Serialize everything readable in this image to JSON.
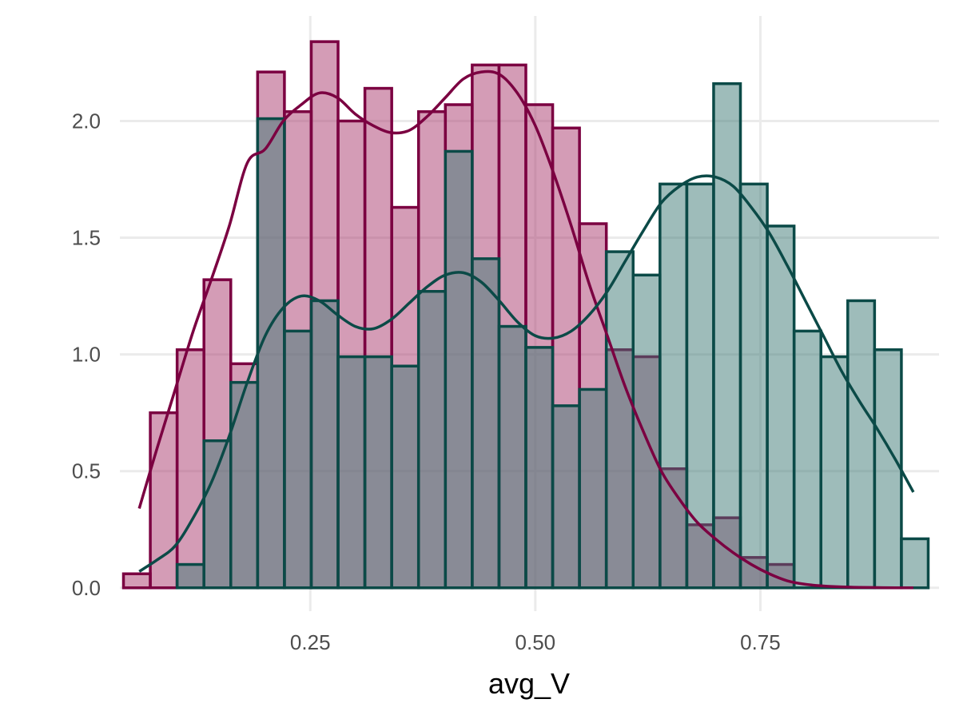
{
  "chart_data": {
    "type": "bar",
    "subtype": "overlaid-histogram-with-density",
    "title": "",
    "xlabel": "avg_V",
    "ylabel": "",
    "xlim": [
      0.0385,
      0.9485
    ],
    "ylim": [
      -0.1,
      2.45
    ],
    "x_ticks": [
      0.25,
      0.5,
      0.75
    ],
    "x_tick_labels": [
      "0.25",
      "0.50",
      "0.75"
    ],
    "y_ticks": [
      0.0,
      0.5,
      1.0,
      1.5,
      2.0
    ],
    "y_tick_labels": [
      "0.0",
      "0.5",
      "1.0",
      "1.5",
      "2.0"
    ],
    "grid": true,
    "legend": "none",
    "series": [
      {
        "color_fill": "#aa3a6e",
        "color_line": "#7b0041",
        "fill_opacity": 0.5,
        "bin_width": 0.0298,
        "bins": [
          {
            "x0": 0.0425,
            "density": 0.06
          },
          {
            "x0": 0.0723,
            "density": 0.75
          },
          {
            "x0": 0.1021,
            "density": 1.02
          },
          {
            "x0": 0.1319,
            "density": 1.32
          },
          {
            "x0": 0.1617,
            "density": 0.96
          },
          {
            "x0": 0.1915,
            "density": 2.21
          },
          {
            "x0": 0.2213,
            "density": 2.04
          },
          {
            "x0": 0.2511,
            "density": 2.34
          },
          {
            "x0": 0.2809,
            "density": 2.0
          },
          {
            "x0": 0.3107,
            "density": 2.14
          },
          {
            "x0": 0.3405,
            "density": 1.63
          },
          {
            "x0": 0.3703,
            "density": 2.04
          },
          {
            "x0": 0.4001,
            "density": 2.07
          },
          {
            "x0": 0.4299,
            "density": 2.24
          },
          {
            "x0": 0.4597,
            "density": 2.24
          },
          {
            "x0": 0.4895,
            "density": 2.07
          },
          {
            "x0": 0.5193,
            "density": 1.97
          },
          {
            "x0": 0.5491,
            "density": 1.56
          },
          {
            "x0": 0.5789,
            "density": 1.02
          },
          {
            "x0": 0.6087,
            "density": 0.99
          },
          {
            "x0": 0.6385,
            "density": 0.51
          },
          {
            "x0": 0.6683,
            "density": 0.27
          },
          {
            "x0": 0.6981,
            "density": 0.3
          },
          {
            "x0": 0.7279,
            "density": 0.13
          },
          {
            "x0": 0.7577,
            "density": 0.1
          }
        ],
        "density_curve": {
          "x": [
            0.06,
            0.08,
            0.1,
            0.12,
            0.14,
            0.16,
            0.18,
            0.2,
            0.22,
            0.24,
            0.26,
            0.28,
            0.3,
            0.32,
            0.34,
            0.36,
            0.38,
            0.4,
            0.42,
            0.44,
            0.46,
            0.48,
            0.5,
            0.52,
            0.54,
            0.56,
            0.58,
            0.6,
            0.62,
            0.64,
            0.66,
            0.68,
            0.7,
            0.72,
            0.74,
            0.76,
            0.78,
            0.8,
            0.82,
            0.84,
            0.86,
            0.88,
            0.9,
            0.92
          ],
          "y": [
            0.34,
            0.6,
            0.85,
            1.1,
            1.32,
            1.55,
            1.82,
            1.88,
            2.0,
            2.07,
            2.12,
            2.1,
            2.03,
            1.98,
            1.95,
            1.96,
            2.02,
            2.1,
            2.18,
            2.21,
            2.2,
            2.12,
            1.98,
            1.78,
            1.55,
            1.3,
            1.08,
            0.86,
            0.67,
            0.5,
            0.38,
            0.28,
            0.21,
            0.15,
            0.1,
            0.06,
            0.03,
            0.015,
            0.008,
            0.004,
            0.002,
            0.001,
            0.0,
            0.0
          ]
        }
      },
      {
        "color_fill": "#3e7a76",
        "color_line": "#0b4a47",
        "fill_opacity": 0.5,
        "bin_width": 0.0298,
        "bins": [
          {
            "x0": 0.0425,
            "density": 0.0
          },
          {
            "x0": 0.0723,
            "density": 0.0
          },
          {
            "x0": 0.1021,
            "density": 0.1
          },
          {
            "x0": 0.1319,
            "density": 0.63
          },
          {
            "x0": 0.1617,
            "density": 0.88
          },
          {
            "x0": 0.1915,
            "density": 2.01
          },
          {
            "x0": 0.2213,
            "density": 1.1
          },
          {
            "x0": 0.2511,
            "density": 1.23
          },
          {
            "x0": 0.2809,
            "density": 0.99
          },
          {
            "x0": 0.3107,
            "density": 0.99
          },
          {
            "x0": 0.3405,
            "density": 0.95
          },
          {
            "x0": 0.3703,
            "density": 1.27
          },
          {
            "x0": 0.4001,
            "density": 1.87
          },
          {
            "x0": 0.4299,
            "density": 1.41
          },
          {
            "x0": 0.4597,
            "density": 1.12
          },
          {
            "x0": 0.4895,
            "density": 1.03
          },
          {
            "x0": 0.5193,
            "density": 0.78
          },
          {
            "x0": 0.5491,
            "density": 0.85
          },
          {
            "x0": 0.5789,
            "density": 1.44
          },
          {
            "x0": 0.6087,
            "density": 1.34
          },
          {
            "x0": 0.6385,
            "density": 1.73
          },
          {
            "x0": 0.6683,
            "density": 1.73
          },
          {
            "x0": 0.6981,
            "density": 2.16
          },
          {
            "x0": 0.7279,
            "density": 1.73
          },
          {
            "x0": 0.7577,
            "density": 1.55
          },
          {
            "x0": 0.7875,
            "density": 1.1
          },
          {
            "x0": 0.8173,
            "density": 0.99
          },
          {
            "x0": 0.8471,
            "density": 1.23
          },
          {
            "x0": 0.8769,
            "density": 1.02
          },
          {
            "x0": 0.9067,
            "density": 0.21
          }
        ],
        "density_curve": {
          "x": [
            0.06,
            0.08,
            0.1,
            0.12,
            0.14,
            0.16,
            0.18,
            0.2,
            0.22,
            0.24,
            0.26,
            0.28,
            0.3,
            0.32,
            0.34,
            0.36,
            0.38,
            0.4,
            0.42,
            0.44,
            0.46,
            0.48,
            0.5,
            0.52,
            0.54,
            0.56,
            0.58,
            0.6,
            0.62,
            0.64,
            0.66,
            0.68,
            0.7,
            0.72,
            0.74,
            0.76,
            0.78,
            0.8,
            0.82,
            0.84,
            0.86,
            0.88,
            0.9,
            0.92
          ],
          "y": [
            0.07,
            0.12,
            0.18,
            0.3,
            0.45,
            0.65,
            0.88,
            1.08,
            1.2,
            1.25,
            1.23,
            1.17,
            1.12,
            1.11,
            1.15,
            1.22,
            1.29,
            1.34,
            1.35,
            1.31,
            1.23,
            1.14,
            1.08,
            1.07,
            1.1,
            1.17,
            1.27,
            1.4,
            1.53,
            1.65,
            1.72,
            1.76,
            1.76,
            1.72,
            1.63,
            1.52,
            1.38,
            1.23,
            1.08,
            0.93,
            0.8,
            0.68,
            0.55,
            0.41
          ]
        }
      }
    ]
  }
}
